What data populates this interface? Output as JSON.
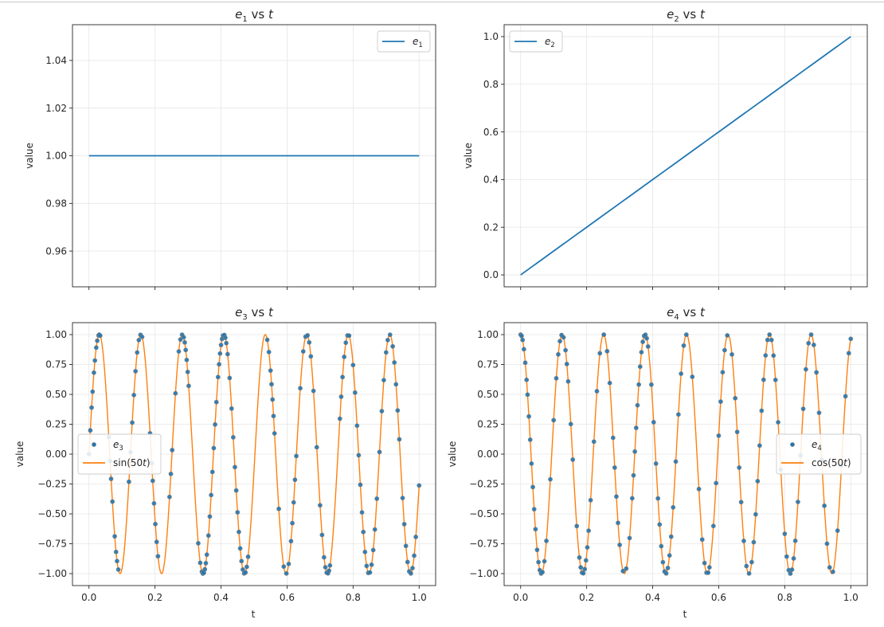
{
  "chart_data": [
    {
      "type": "line",
      "title": {
        "main": "e",
        "sub": "1",
        "rest": " vs ",
        "var": "t"
      },
      "ylabel": "value",
      "xlabel": "",
      "xlim": [
        -0.05,
        1.05
      ],
      "ylim": [
        0.945,
        1.055
      ],
      "xticks": [
        0.0,
        0.2,
        0.4,
        0.6,
        0.8,
        1.0
      ],
      "yticks": [
        0.96,
        0.98,
        1.0,
        1.02,
        1.04
      ],
      "ytick_labels": [
        "0.96",
        "0.98",
        "1.00",
        "1.02",
        "1.04"
      ],
      "show_xtick_labels": false,
      "grid": true,
      "legend": {
        "placement": "top-right",
        "entries": [
          {
            "kind": "line",
            "main": "e",
            "sub": "1",
            "color": "#1f77b4"
          }
        ]
      },
      "series": [
        {
          "kind": "line",
          "color": "#1f77b4",
          "function": "constant_one"
        }
      ]
    },
    {
      "type": "line",
      "title": {
        "main": "e",
        "sub": "2",
        "rest": " vs ",
        "var": "t"
      },
      "ylabel": "value",
      "xlabel": "",
      "xlim": [
        -0.05,
        1.05
      ],
      "ylim": [
        -0.05,
        1.05
      ],
      "xticks": [
        0.0,
        0.2,
        0.4,
        0.6,
        0.8,
        1.0
      ],
      "yticks": [
        0.0,
        0.2,
        0.4,
        0.6,
        0.8,
        1.0
      ],
      "ytick_labels": [
        "0.0",
        "0.2",
        "0.4",
        "0.6",
        "0.8",
        "1.0"
      ],
      "show_xtick_labels": false,
      "grid": true,
      "legend": {
        "placement": "top-left",
        "entries": [
          {
            "kind": "line",
            "main": "e",
            "sub": "2",
            "color": "#1f77b4"
          }
        ]
      },
      "series": [
        {
          "kind": "line",
          "color": "#1f77b4",
          "function": "identity"
        }
      ]
    },
    {
      "type": "scatter",
      "title": {
        "main": "e",
        "sub": "3",
        "rest": " vs ",
        "var": "t"
      },
      "ylabel": "value",
      "xlabel": "t",
      "xlim": [
        -0.05,
        1.05
      ],
      "ylim": [
        -1.1,
        1.1
      ],
      "xticks": [
        0.0,
        0.2,
        0.4,
        0.6,
        0.8,
        1.0
      ],
      "xtick_labels": [
        "0.0",
        "0.2",
        "0.4",
        "0.6",
        "0.8",
        "1.0"
      ],
      "yticks": [
        -1.0,
        -0.75,
        -0.5,
        -0.25,
        0.0,
        0.25,
        0.5,
        0.75,
        1.0
      ],
      "ytick_labels": [
        "−1.00",
        "−0.75",
        "−0.50",
        "−0.25",
        "0.00",
        "0.25",
        "0.50",
        "0.75",
        "1.00"
      ],
      "show_xtick_labels": true,
      "grid": true,
      "legend": {
        "placement": "center-left",
        "entries": [
          {
            "kind": "dot",
            "main": "e",
            "sub": "3",
            "color": "#1f77b4"
          },
          {
            "kind": "line",
            "plain": "sin(50",
            "var": "t",
            "close": ")",
            "color": "#ff7f0e"
          }
        ]
      },
      "series": [
        {
          "kind": "dots",
          "color": "#1f77b4",
          "function": "sin50",
          "t": [
            0.0,
            0.004,
            0.008,
            0.011,
            0.015,
            0.018,
            0.022,
            0.025,
            0.029,
            0.031,
            0.034,
            0.06,
            0.064,
            0.067,
            0.071,
            0.078,
            0.082,
            0.085,
            0.089,
            0.121,
            0.126,
            0.131,
            0.136,
            0.141,
            0.146,
            0.151,
            0.156,
            0.161,
            0.185,
            0.19,
            0.193,
            0.197,
            0.201,
            0.205,
            0.209,
            0.244,
            0.248,
            0.252,
            0.262,
            0.272,
            0.277,
            0.282,
            0.287,
            0.29,
            0.293,
            0.296,
            0.299,
            0.302,
            0.331,
            0.337,
            0.342,
            0.345,
            0.348,
            0.351,
            0.354,
            0.357,
            0.362,
            0.366,
            0.37,
            0.374,
            0.378,
            0.382,
            0.386,
            0.391,
            0.394,
            0.397,
            0.4,
            0.403,
            0.406,
            0.41,
            0.413,
            0.416,
            0.42,
            0.426,
            0.432,
            0.437,
            0.442,
            0.446,
            0.45,
            0.454,
            0.458,
            0.462,
            0.466,
            0.47,
            0.474,
            0.478,
            0.482,
            0.54,
            0.545,
            0.55,
            0.553,
            0.556,
            0.559,
            0.562,
            0.575,
            0.59,
            0.598,
            0.605,
            0.612,
            0.616,
            0.62,
            0.624,
            0.628,
            0.64,
            0.649,
            0.656,
            0.662,
            0.667,
            0.672,
            0.68,
            0.69,
            0.7,
            0.706,
            0.712,
            0.716,
            0.72,
            0.724,
            0.727,
            0.73,
            0.76,
            0.764,
            0.768,
            0.773,
            0.778,
            0.783,
            0.788,
            0.8,
            0.806,
            0.812,
            0.817,
            0.822,
            0.827,
            0.831,
            0.836,
            0.841,
            0.846,
            0.851,
            0.856,
            0.861,
            0.866,
            0.872,
            0.88,
            0.887,
            0.893,
            0.9,
            0.905,
            0.912,
            0.92,
            0.925,
            0.93,
            0.935,
            0.94,
            0.95,
            0.955,
            0.96,
            0.965,
            0.97,
            0.975,
            0.98,
            0.985,
            0.99,
            1.0
          ]
        },
        {
          "kind": "curve",
          "color": "#ff7f0e",
          "function": "sin50"
        }
      ]
    },
    {
      "type": "scatter",
      "title": {
        "main": "e",
        "sub": "4",
        "rest": " vs ",
        "var": "t"
      },
      "ylabel": "value",
      "xlabel": "t",
      "xlim": [
        -0.05,
        1.05
      ],
      "ylim": [
        -1.1,
        1.1
      ],
      "xticks": [
        0.0,
        0.2,
        0.4,
        0.6,
        0.8,
        1.0
      ],
      "xtick_labels": [
        "0.0",
        "0.2",
        "0.4",
        "0.6",
        "0.8",
        "1.0"
      ],
      "yticks": [
        -1.0,
        -0.75,
        -0.5,
        -0.25,
        0.0,
        0.25,
        0.5,
        0.75,
        1.0
      ],
      "ytick_labels": [
        "−1.00",
        "−0.75",
        "−0.50",
        "−0.25",
        "0.00",
        "0.25",
        "0.50",
        "0.75",
        "1.00"
      ],
      "show_xtick_labels": true,
      "grid": true,
      "legend": {
        "placement": "center-right",
        "entries": [
          {
            "kind": "dot",
            "main": "e",
            "sub": "4",
            "color": "#1f77b4"
          },
          {
            "kind": "line",
            "plain": "cos(50",
            "var": "t",
            "close": ")",
            "color": "#ff7f0e"
          }
        ]
      },
      "series": [
        {
          "kind": "dots",
          "color": "#1f77b4",
          "function": "cos50",
          "t": [
            0.0,
            0.003,
            0.006,
            0.01,
            0.014,
            0.018,
            0.021,
            0.025,
            0.029,
            0.033,
            0.037,
            0.041,
            0.045,
            0.05,
            0.054,
            0.058,
            0.062,
            0.066,
            0.072,
            0.078,
            0.09,
            0.1,
            0.108,
            0.114,
            0.119,
            0.124,
            0.13,
            0.136,
            0.14,
            0.144,
            0.152,
            0.158,
            0.17,
            0.178,
            0.182,
            0.186,
            0.19,
            0.194,
            0.198,
            0.202,
            0.206,
            0.212,
            0.222,
            0.231,
            0.24,
            0.252,
            0.262,
            0.27,
            0.28,
            0.285,
            0.29,
            0.295,
            0.3,
            0.31,
            0.32,
            0.33,
            0.338,
            0.342,
            0.346,
            0.35,
            0.354,
            0.358,
            0.362,
            0.366,
            0.37,
            0.374,
            0.378,
            0.382,
            0.386,
            0.396,
            0.403,
            0.41,
            0.416,
            0.421,
            0.426,
            0.431,
            0.436,
            0.441,
            0.446,
            0.451,
            0.456,
            0.462,
            0.47,
            0.478,
            0.486,
            0.494,
            0.502,
            0.52,
            0.54,
            0.55,
            0.557,
            0.563,
            0.568,
            0.572,
            0.584,
            0.592,
            0.6,
            0.606,
            0.612,
            0.618,
            0.626,
            0.64,
            0.65,
            0.656,
            0.662,
            0.668,
            0.676,
            0.684,
            0.692,
            0.7,
            0.706,
            0.712,
            0.718,
            0.724,
            0.73,
            0.736,
            0.742,
            0.748,
            0.754,
            0.76,
            0.766,
            0.772,
            0.78,
            0.788,
            0.8,
            0.806,
            0.812,
            0.817,
            0.822,
            0.827,
            0.832,
            0.84,
            0.848,
            0.856,
            0.864,
            0.872,
            0.88,
            0.888,
            0.896,
            0.904,
            0.912,
            0.92,
            0.928,
            0.936,
            0.946,
            0.96,
            0.972,
            0.984,
            0.994,
            1.0
          ]
        },
        {
          "kind": "curve",
          "color": "#ff7f0e",
          "function": "cos50"
        }
      ]
    }
  ]
}
